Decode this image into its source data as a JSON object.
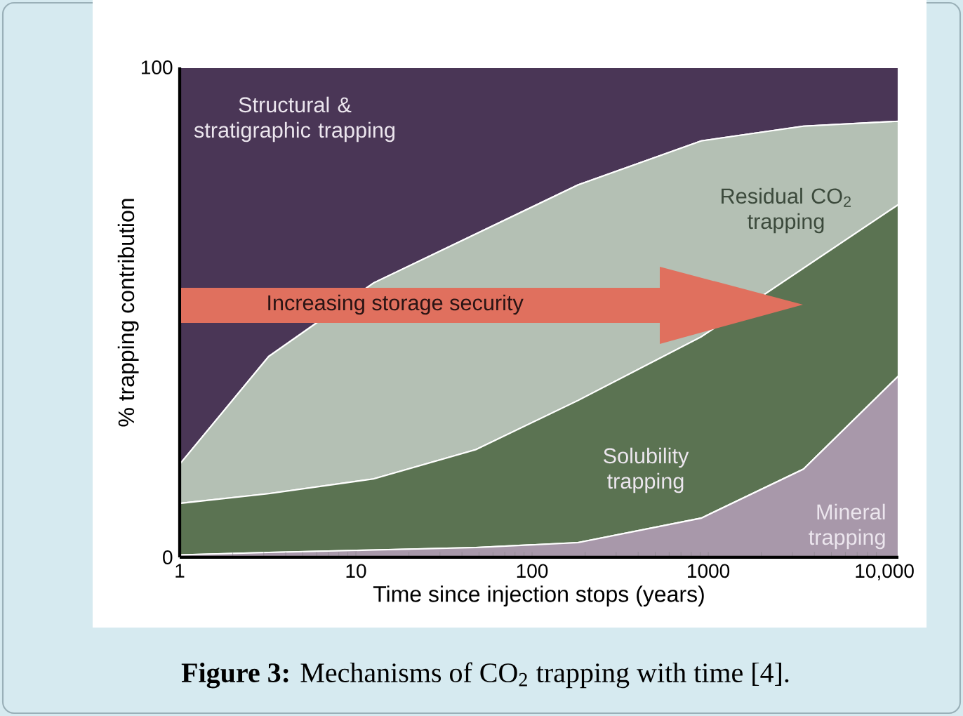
{
  "chart_data": {
    "type": "area",
    "stacked": true,
    "log": "x",
    "xlabel": "Time since injection stops (years)",
    "ylabel": "% trapping contribution",
    "x": [
      1,
      3.2,
      12.6,
      48,
      182,
      912,
      3470,
      12000
    ],
    "xlim": [
      1,
      12000
    ],
    "xticks": [
      1,
      10,
      100,
      1000,
      {
        "value": 10000,
        "label": "10,000"
      }
    ],
    "ylim": [
      0,
      100
    ],
    "yticks": [
      0,
      100
    ],
    "series": [
      {
        "name": "Mineral trapping",
        "color": "#a898aa",
        "values": [
          0.5,
          1,
          1.5,
          2,
          3,
          8,
          18,
          37
        ]
      },
      {
        "name": "Solubility trapping",
        "color": "#5b7352",
        "values": [
          10.5,
          12,
          14.5,
          20,
          29,
          37,
          41,
          35
        ]
      },
      {
        "name": "Residual CO$_{2}$ trapping",
        "color": "#b4c0b4",
        "values": [
          8,
          28,
          40,
          44,
          44,
          40,
          29,
          17
        ]
      },
      {
        "name": "Structural & stratigraphic trapping",
        "color": "#4a3656",
        "values": [
          81,
          59,
          44,
          34,
          24,
          15,
          12,
          11
        ]
      }
    ],
    "annotations": [
      "Increasing storage security",
      "**Figure 3:** Mechanisms of CO$_{2}$ trapping with time [4]."
    ]
  }
}
